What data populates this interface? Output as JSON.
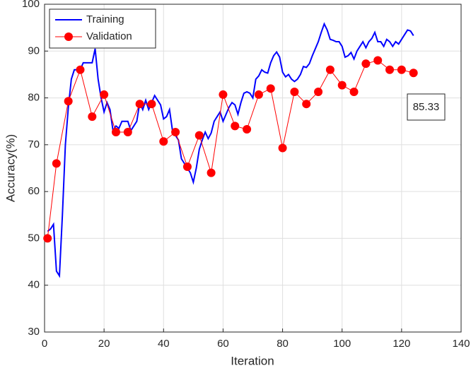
{
  "chart_data": {
    "type": "line",
    "xlabel": "Iteration",
    "ylabel": "Accuracy(%)",
    "xlim": [
      0,
      140
    ],
    "xticks": [
      0,
      20,
      40,
      60,
      80,
      100,
      120,
      140
    ],
    "ylim": [
      30,
      100
    ],
    "yticks": [
      30,
      40,
      50,
      60,
      70,
      80,
      90,
      100
    ],
    "grid": true,
    "legend": "upper left",
    "annotations": [
      "85.33"
    ],
    "series": [
      {
        "name": "Training",
        "color": "#0000ff",
        "marker": false,
        "x": [
          1,
          2,
          3,
          4,
          5,
          6,
          7,
          8,
          9,
          10,
          11,
          12,
          13,
          14,
          15,
          16,
          17,
          18,
          19,
          20,
          21,
          22,
          23,
          24,
          25,
          26,
          27,
          28,
          29,
          30,
          31,
          32,
          33,
          34,
          35,
          36,
          37,
          38,
          39,
          40,
          41,
          42,
          43,
          44,
          45,
          46,
          47,
          48,
          49,
          50,
          51,
          52,
          53,
          54,
          55,
          56,
          57,
          58,
          59,
          60,
          61,
          62,
          63,
          64,
          65,
          66,
          67,
          68,
          69,
          70,
          71,
          72,
          73,
          74,
          75,
          76,
          77,
          78,
          79,
          80,
          81,
          82,
          83,
          84,
          85,
          86,
          87,
          88,
          89,
          90,
          91,
          92,
          93,
          94,
          95,
          96,
          97,
          98,
          99,
          100,
          101,
          102,
          103,
          104,
          105,
          106,
          107,
          108,
          109,
          110,
          111,
          112,
          113,
          114,
          115,
          116,
          117,
          118,
          119,
          120,
          121,
          122,
          123,
          124
        ],
        "values": [
          51.5,
          52,
          53,
          43,
          42,
          55,
          70,
          78,
          84,
          86,
          86,
          86,
          87.5,
          87.5,
          87.5,
          87.5,
          90.5,
          84,
          80,
          77,
          79,
          77.5,
          73,
          74,
          73.5,
          75,
          75,
          75,
          73,
          74,
          75,
          79,
          77.5,
          79.5,
          77.5,
          79,
          80.5,
          79.5,
          78.5,
          75.5,
          76,
          77.5,
          73,
          72,
          71,
          67,
          66,
          65,
          64,
          62,
          65,
          69,
          71,
          72.7,
          71.3,
          72.5,
          75,
          76,
          77,
          75,
          76.5,
          78,
          79,
          78.5,
          76.5,
          79,
          81,
          81.3,
          81,
          80,
          84,
          84.7,
          86,
          85.5,
          85.3,
          87.5,
          89,
          89.8,
          88.7,
          85.5,
          84.5,
          85,
          84,
          83.5,
          84,
          85,
          86.7,
          86.5,
          87.3,
          89,
          90.5,
          92,
          94,
          95.8,
          94.5,
          92.5,
          92.3,
          92,
          92,
          91,
          88.7,
          89,
          89.7,
          88.3,
          90,
          91,
          92,
          90.7,
          92,
          92.7,
          94,
          92,
          92,
          91,
          92.5,
          92,
          91,
          92,
          91.5,
          92.5,
          93.5,
          94.5,
          94.3,
          93.3
        ]
      },
      {
        "name": "Validation",
        "color": "#ff0000",
        "marker": true,
        "x": [
          1,
          4,
          8,
          12,
          16,
          20,
          24,
          28,
          32,
          36,
          40,
          44,
          48,
          52,
          56,
          60,
          64,
          68,
          72,
          76,
          80,
          84,
          88,
          92,
          96,
          100,
          104,
          108,
          112,
          116,
          120,
          124
        ],
        "values": [
          50,
          66,
          79.3,
          86,
          76,
          80.7,
          72.7,
          72.7,
          78.7,
          78.7,
          70.7,
          72.7,
          65.3,
          72,
          64,
          80.7,
          74,
          73.3,
          80.7,
          82,
          69.3,
          81.3,
          78.7,
          81.3,
          86,
          82.7,
          81.3,
          87.3,
          88,
          86,
          86,
          85.33
        ]
      }
    ]
  }
}
